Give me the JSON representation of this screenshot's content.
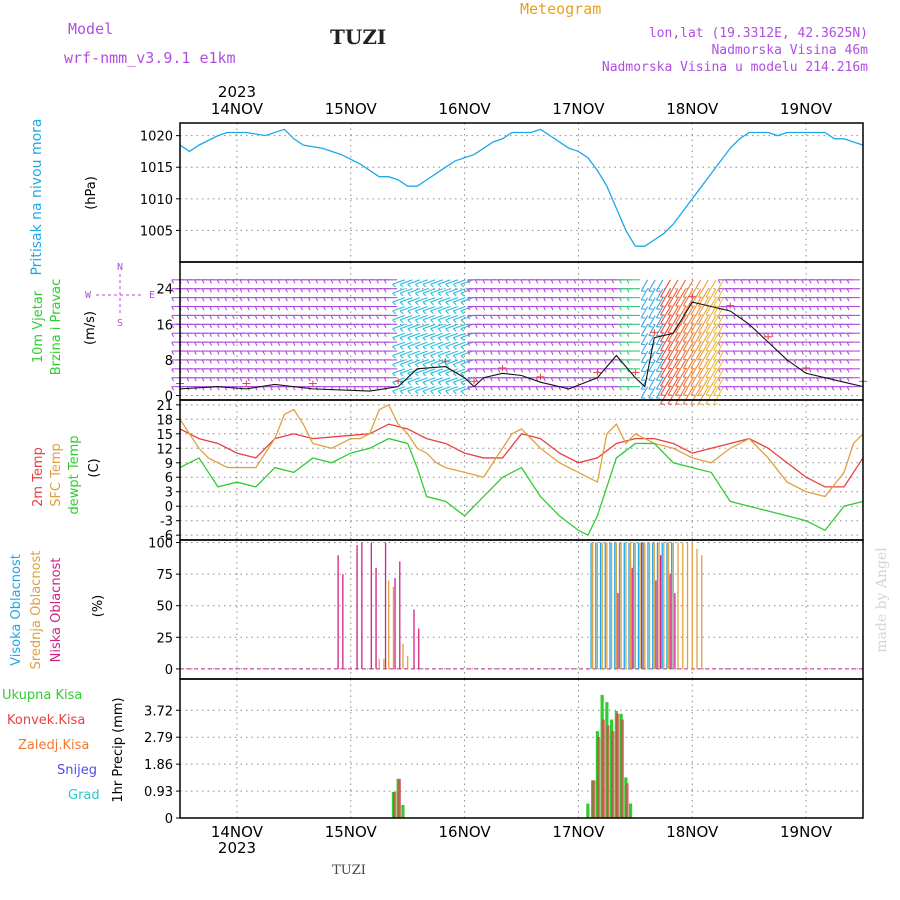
{
  "header": {
    "model_label": "Model",
    "model_name": "wrf-nmm_v3.9.1  e1km",
    "station": "TUZI",
    "product": "Meteogram",
    "coords": "lon,lat (19.3312E, 42.3625N)",
    "elevation": "Nadmorska Visina 46m",
    "model_elevation": "Nadmorska Visina u modelu 214.216m"
  },
  "footer": {
    "station": "TUZI",
    "credit": "made by Angel"
  },
  "colors": {
    "purple": "#b04ee0",
    "orange": "#e8a020",
    "pressure": "#1ea8e8",
    "red": "#e84040",
    "tan": "#e0a040",
    "green": "#30cc30",
    "magenta": "#d0208a",
    "blue": "#4f4fe8",
    "cyan": "#2ec6c6"
  },
  "time_axis": {
    "year": "2023",
    "days": [
      "14NOV",
      "15NOV",
      "16NOV",
      "17NOV",
      "18NOV",
      "19NOV"
    ],
    "range_hours": [
      0,
      144
    ]
  },
  "panels": {
    "pressure": {
      "label1": "Pritisak na nivou mora",
      "unit": "(hPa)"
    },
    "wind": {
      "label1": "10m Vjetar",
      "label2": "Brzina i Pravac",
      "unit": "(m/s)",
      "compass": {
        "n": "N",
        "s": "S",
        "w": "W",
        "e": "E"
      }
    },
    "temp": {
      "label1": "2m Temp",
      "label2": "SFC Temp",
      "label3": "dewpt Temp",
      "unit": "(C)"
    },
    "cloud": {
      "label1": "Visoka Oblacnost",
      "label2": "Srednja Oblacnost",
      "label3": "Niska Oblacnost",
      "unit": "(%)"
    },
    "precip": {
      "legend": [
        "Ukupna Kisa",
        "Konvek.Kisa",
        "Zaledj.Kisa",
        "Snijeg",
        "Grad"
      ],
      "ylabel": "1hr Precip (mm)"
    }
  },
  "chart_data": [
    {
      "type": "line",
      "title": "Pritisak na nivou mora",
      "ylabel": "(hPa)",
      "ylim": [
        1000,
        1022
      ],
      "yticks": [
        "1005",
        "1010",
        "1015",
        "1020"
      ],
      "grid": true,
      "series": [
        {
          "name": "Pritisak na nivou mora",
          "x": [
            0,
            2,
            4,
            8,
            10,
            14,
            18,
            22,
            24,
            26,
            30,
            34,
            38,
            42,
            44,
            46,
            48,
            50,
            52,
            54,
            56,
            58,
            60,
            62,
            64,
            66,
            68,
            70,
            72,
            74,
            76,
            78,
            80,
            82,
            84,
            86,
            88,
            90,
            92,
            94,
            96,
            98,
            100,
            102,
            104,
            106,
            108,
            110,
            112,
            114,
            116,
            118,
            120,
            122,
            124,
            126,
            128,
            130,
            132,
            134,
            136,
            138,
            140,
            142,
            144
          ],
          "y": [
            1018.5,
            1017.5,
            1018.5,
            1020,
            1020.5,
            1020.5,
            1020,
            1021,
            1019.5,
            1018.5,
            1018,
            1017,
            1015.5,
            1013.5,
            1013.5,
            1013,
            1012,
            1012,
            1013,
            1014,
            1015,
            1016,
            1016.5,
            1017,
            1018,
            1019,
            1019.5,
            1020.5,
            1020.5,
            1020.5,
            1021,
            1020,
            1019,
            1018,
            1017.5,
            1016.5,
            1014.5,
            1012,
            1008.5,
            1005,
            1002.5,
            1002.5,
            1003.5,
            1004.5,
            1006,
            1008,
            1010,
            1012,
            1014,
            1016,
            1018,
            1019.5,
            1020.5,
            1020.5,
            1020.5,
            1020,
            1020.5,
            1020.5,
            1020.5,
            1020.5,
            1020.5,
            1019.5,
            1019.5,
            1019,
            1018.5
          ]
        }
      ]
    },
    {
      "type": "line",
      "title": "10m Vjetar Brzina i Pravac",
      "ylabel": "(m/s)",
      "ylim": [
        -1,
        30
      ],
      "yticks": [
        "0",
        "8",
        "16",
        "24"
      ],
      "grid": true,
      "series": [
        {
          "name": "10m Vjetar Brzina",
          "x": [
            0,
            8,
            14,
            20,
            28,
            40,
            46,
            50,
            56,
            60,
            62,
            64,
            68,
            72,
            76,
            82,
            88,
            92,
            96,
            98,
            100,
            104,
            108,
            112,
            116,
            120,
            124,
            128,
            132,
            140,
            144
          ],
          "y": [
            1.5,
            2,
            1.5,
            2.5,
            1.5,
            1,
            2,
            6,
            6.5,
            4,
            2,
            4,
            5,
            4.5,
            3,
            1.5,
            4,
            9,
            4,
            2,
            13,
            14,
            21,
            20,
            19,
            16,
            12,
            8,
            5,
            3,
            2
          ]
        }
      ],
      "barb_rows": [
        2,
        4,
        6,
        8,
        10,
        12,
        14,
        16,
        18,
        20,
        22,
        24,
        26
      ]
    },
    {
      "type": "line",
      "title": "2m Temp / SFC Temp / dewpt Temp",
      "ylabel": "(C)",
      "ylim": [
        -7,
        22
      ],
      "yticks": [
        "-6",
        "-3",
        "0",
        "3",
        "6",
        "9",
        "12",
        "15",
        "18",
        "21"
      ],
      "grid": true,
      "series": [
        {
          "name": "2m Temp",
          "x": [
            0,
            4,
            8,
            12,
            16,
            20,
            24,
            28,
            34,
            40,
            44,
            48,
            52,
            56,
            60,
            64,
            68,
            72,
            76,
            80,
            84,
            88,
            92,
            96,
            100,
            104,
            108,
            112,
            116,
            120,
            124,
            128,
            132,
            136,
            140,
            144
          ],
          "y": [
            16,
            14,
            13,
            11,
            10,
            14,
            15,
            14,
            14.5,
            15,
            17,
            16,
            14,
            13,
            11,
            10,
            10,
            15,
            14,
            11,
            9,
            10,
            13,
            14,
            14,
            13,
            11,
            12,
            13,
            14,
            12,
            9,
            6,
            4,
            4,
            10
          ]
        },
        {
          "name": "SFC Temp",
          "x": [
            0,
            2,
            4,
            6,
            8,
            10,
            12,
            16,
            20,
            22,
            24,
            26,
            28,
            32,
            34,
            36,
            38,
            40,
            42,
            44,
            46,
            48,
            50,
            52,
            54,
            56,
            60,
            64,
            68,
            70,
            72,
            74,
            76,
            80,
            84,
            88,
            90,
            92,
            94,
            96,
            100,
            104,
            108,
            112,
            116,
            120,
            124,
            128,
            132,
            136,
            140,
            142,
            144
          ],
          "y": [
            18,
            15,
            12,
            10,
            9,
            8,
            8,
            8,
            14,
            19,
            20,
            17,
            13,
            12,
            13,
            14,
            14,
            15,
            20,
            21,
            17,
            15,
            12,
            11,
            9,
            8,
            7,
            6,
            12,
            15,
            16,
            14,
            12,
            9,
            7,
            5,
            15,
            17,
            13,
            15,
            13,
            12,
            10,
            9,
            12,
            14,
            10,
            5,
            3,
            2,
            7,
            13,
            15
          ]
        },
        {
          "name": "dewpt Temp",
          "x": [
            0,
            4,
            8,
            12,
            16,
            20,
            24,
            28,
            32,
            36,
            40,
            44,
            48,
            50,
            52,
            56,
            60,
            64,
            68,
            72,
            76,
            80,
            84,
            86,
            88,
            92,
            96,
            100,
            104,
            108,
            112,
            116,
            120,
            124,
            128,
            132,
            136,
            140,
            144
          ],
          "y": [
            8,
            10,
            4,
            5,
            4,
            8,
            7,
            10,
            9,
            11,
            12,
            14,
            13,
            8,
            2,
            1,
            -2,
            2,
            6,
            8,
            2,
            -2,
            -5,
            -6,
            -2,
            10,
            13,
            13,
            9,
            8,
            7,
            1,
            0,
            -1,
            -2,
            -3,
            -5,
            0,
            1
          ]
        }
      ]
    },
    {
      "type": "bar",
      "title": "Oblacnost",
      "ylabel": "(%)",
      "ylim": [
        -8,
        102
      ],
      "yticks": [
        "0",
        "25",
        "50",
        "75",
        "100"
      ],
      "grid": true,
      "series": [
        {
          "name": "Visoka Oblacnost",
          "x": [
            87,
            88,
            89,
            90,
            91,
            92,
            93,
            94,
            95,
            96,
            97,
            98,
            99,
            100,
            101,
            102,
            103,
            104
          ],
          "y": [
            100,
            100,
            100,
            100,
            100,
            100,
            100,
            100,
            100,
            100,
            100,
            100,
            100,
            100,
            100,
            100,
            100,
            100
          ]
        },
        {
          "name": "Srednja Oblacnost",
          "x": [
            42,
            43,
            44,
            45,
            47,
            48,
            87,
            88,
            89,
            90,
            91,
            92,
            93,
            94,
            95,
            96,
            97,
            98,
            99,
            100,
            101,
            102,
            103,
            104,
            105,
            106,
            107,
            108,
            109,
            110
          ],
          "y": [
            8,
            8,
            70,
            65,
            20,
            10,
            100,
            100,
            100,
            100,
            100,
            100,
            100,
            100,
            100,
            100,
            100,
            100,
            100,
            100,
            100,
            100,
            100,
            100,
            100,
            100,
            100,
            100,
            95,
            90
          ]
        },
        {
          "name": "Niska Oblacnost",
          "x": [
            33,
            34,
            37,
            38,
            40,
            41,
            43,
            45,
            46,
            49,
            50,
            92,
            95,
            97,
            100,
            101,
            103,
            104
          ],
          "y": [
            90,
            75,
            98,
            100,
            100,
            80,
            100,
            72,
            85,
            47,
            32,
            60,
            80,
            100,
            70,
            90,
            75,
            60
          ]
        }
      ]
    },
    {
      "type": "bar",
      "title": "1hr Precip (mm)",
      "ylabel": "1hr Precip (mm)",
      "ylim": [
        0,
        4.8
      ],
      "yticks": [
        "0",
        "0.93",
        "1.86",
        "2.79",
        "3.72"
      ],
      "grid": true,
      "series": [
        {
          "name": "Ukupna Kisa",
          "x": [
            45,
            46,
            47,
            86,
            87,
            88,
            89,
            90,
            91,
            92,
            93,
            94,
            95
          ],
          "y": [
            0.9,
            1.35,
            0.45,
            0.5,
            1.3,
            3,
            4.25,
            4,
            3.4,
            3.7,
            3.6,
            1.4,
            0.5
          ]
        },
        {
          "name": "Konvek.Kisa",
          "x": [
            45,
            46,
            87,
            88,
            89,
            90,
            91,
            92,
            93,
            94
          ],
          "y": [
            0.9,
            1.35,
            1.3,
            2.8,
            3.4,
            3.2,
            3,
            3.6,
            3.4,
            1.2
          ]
        },
        {
          "name": "Zaledj.Kisa",
          "x": [],
          "y": []
        },
        {
          "name": "Snijeg",
          "x": [],
          "y": []
        },
        {
          "name": "Grad",
          "x": [],
          "y": []
        }
      ]
    }
  ]
}
